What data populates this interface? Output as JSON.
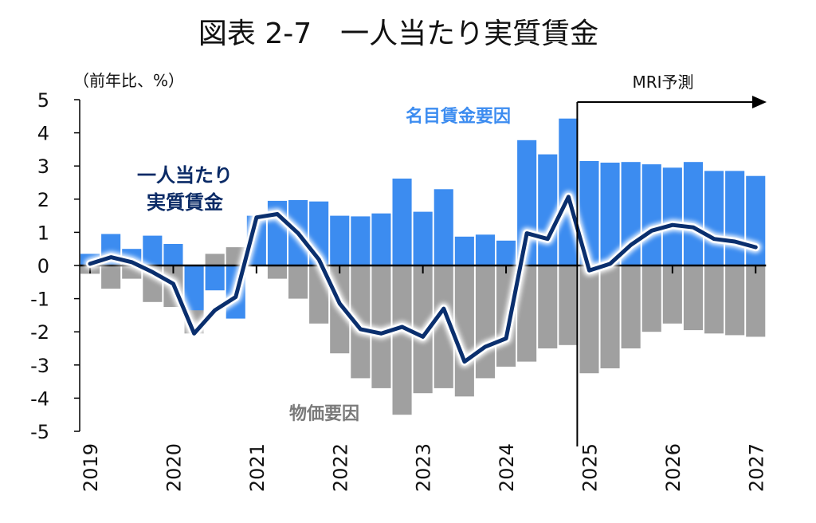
{
  "chart_data": {
    "type": "bar",
    "title": "図表 2-7　一人当たり実質賃金",
    "ylabel": "（前年比、%）",
    "ylim": [
      -5,
      5
    ],
    "yticks": [
      5,
      4,
      3,
      2,
      1,
      0,
      -1,
      -2,
      -3,
      -4,
      -5
    ],
    "x_tick_labels": [
      "2019",
      "2020",
      "2021",
      "2022",
      "2023",
      "2024",
      "2025",
      "2026",
      "2027"
    ],
    "grid": false,
    "stacked": true,
    "colors": {
      "nominal": "#3c8cf0",
      "price": "#a0a0a0",
      "real": "#0a2f6e"
    },
    "quarters": [
      "2019Q1",
      "2019Q2",
      "2019Q3",
      "2019Q4",
      "2020Q1",
      "2020Q2",
      "2020Q3",
      "2020Q4",
      "2021Q1",
      "2021Q2",
      "2021Q3",
      "2021Q4",
      "2022Q1",
      "2022Q2",
      "2022Q3",
      "2022Q4",
      "2023Q1",
      "2023Q2",
      "2023Q3",
      "2023Q4",
      "2024Q1",
      "2024Q2",
      "2024Q3",
      "2024Q4",
      "2025Q1",
      "2025Q2",
      "2025Q3",
      "2025Q4",
      "2026Q1",
      "2026Q2",
      "2026Q3",
      "2026Q4",
      "2027Q1"
    ],
    "series": [
      {
        "name": "名目賃金要因",
        "kind": "bar",
        "values": [
          0.35,
          0.95,
          0.5,
          0.9,
          0.65,
          -1.35,
          -0.75,
          -1.6,
          1.5,
          1.95,
          1.97,
          1.93,
          1.5,
          1.48,
          1.57,
          2.62,
          1.62,
          2.3,
          0.87,
          0.93,
          0.75,
          3.78,
          3.35,
          4.43,
          3.15,
          3.1,
          3.12,
          3.05,
          2.95,
          3.12,
          2.85,
          2.85,
          2.7
        ]
      },
      {
        "name": "物価要因",
        "kind": "bar",
        "values": [
          -0.25,
          -0.7,
          -0.4,
          -1.1,
          -1.25,
          -2.05,
          0.35,
          0.55,
          0.0,
          -0.4,
          -1.0,
          -1.75,
          -2.65,
          -3.4,
          -3.7,
          -4.5,
          -3.85,
          -3.7,
          -3.95,
          -3.4,
          -3.05,
          -2.9,
          -2.5,
          -2.4,
          -3.25,
          -3.1,
          -2.5,
          -2.0,
          -1.75,
          -1.95,
          -2.05,
          -2.1,
          -2.15
        ]
      },
      {
        "name": "一人当たり実質賃金",
        "kind": "line",
        "values": [
          0.05,
          0.25,
          0.1,
          -0.2,
          -0.55,
          -2.05,
          -1.35,
          -0.95,
          1.45,
          1.55,
          0.97,
          0.18,
          -1.15,
          -1.92,
          -2.05,
          -1.85,
          -2.15,
          -1.3,
          -2.9,
          -2.45,
          -2.2,
          0.97,
          0.8,
          2.07,
          -0.15,
          0.05,
          0.62,
          1.05,
          1.22,
          1.15,
          0.8,
          0.72,
          0.55
        ]
      }
    ],
    "annotations": {
      "nominal_label": "名目賃金要因",
      "real_label_line1": "一人当たり",
      "real_label_line2": "実質賃金",
      "price_label": "物価要因",
      "forecast_label": "MRI予測",
      "forecast_start": "2025Q1"
    }
  }
}
